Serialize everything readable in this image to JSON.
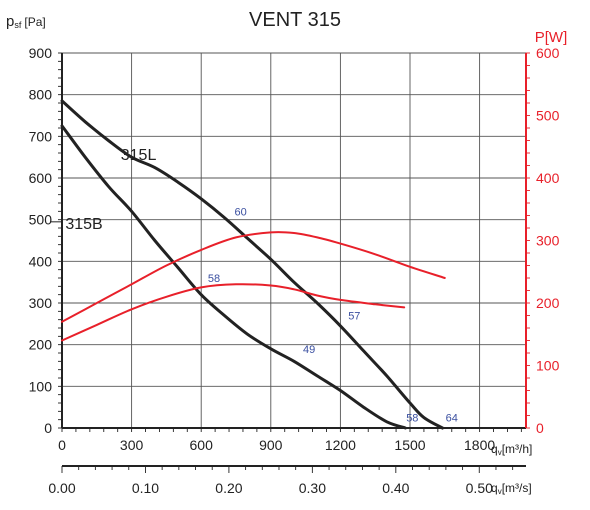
{
  "chart_data": {
    "type": "line",
    "title": "VENT 315",
    "ylabel": "psf [Pa]",
    "ylabel_sub": "sf",
    "ylabel_main": "p",
    "ylabel_unit": "[Pa]",
    "y2label": "P[W]",
    "xlabel": "qv[m³/h]",
    "xlabel_main": "q",
    "xlabel_sub": "v",
    "xlabel_unit": "[m³/h]",
    "x2label_main": "q",
    "x2label_sub": "v",
    "x2label_unit": "[m³/s]",
    "xlim": [
      0,
      2000
    ],
    "ylim": [
      0,
      900
    ],
    "y2lim": [
      0,
      600
    ],
    "x2lim": [
      0,
      0.556
    ],
    "grid": true,
    "x_ticks": [
      0,
      300,
      600,
      900,
      1200,
      1500,
      1800
    ],
    "x_tick_labels": [
      "0",
      "300",
      "600",
      "900",
      "1200",
      "1500",
      "1800"
    ],
    "y_ticks": [
      0,
      100,
      200,
      300,
      400,
      500,
      600,
      700,
      800,
      900
    ],
    "y_tick_labels": [
      "0",
      "100",
      "200",
      "300",
      "400",
      "500",
      "600",
      "700",
      "800",
      "900"
    ],
    "y2_ticks": [
      0,
      100,
      200,
      300,
      400,
      500,
      600
    ],
    "y2_tick_labels": [
      "0",
      "100",
      "200",
      "300",
      "400",
      "500",
      "600"
    ],
    "x2_ticks": [
      0,
      0.1,
      0.2,
      0.3,
      0.4,
      0.5
    ],
    "x2_tick_labels": [
      "0.00",
      "0.10",
      "0.20",
      "0.30",
      "0.40",
      "0.50"
    ],
    "colors": {
      "pressure": "#222222",
      "power": "#e8202a",
      "annotation": "#3a4fa0",
      "grid": "#555555"
    },
    "series": [
      {
        "name": "315L",
        "axis": "left",
        "x": [
          0,
          100,
          200,
          300,
          400,
          500,
          600,
          700,
          800,
          900,
          1000,
          1100,
          1200,
          1300,
          1400,
          1500,
          1560,
          1640
        ],
        "y": [
          785,
          735,
          690,
          650,
          625,
          590,
          550,
          505,
          455,
          405,
          350,
          300,
          245,
          185,
          125,
          60,
          25,
          0
        ]
      },
      {
        "name": "315B",
        "axis": "left",
        "x": [
          0,
          100,
          200,
          300,
          400,
          500,
          600,
          700,
          800,
          900,
          1000,
          1100,
          1200,
          1300,
          1400,
          1480
        ],
        "y": [
          725,
          650,
          580,
          520,
          450,
          385,
          320,
          270,
          225,
          190,
          160,
          125,
          90,
          50,
          15,
          0
        ]
      },
      {
        "name": "",
        "axis": "right",
        "x": [
          0,
          150,
          300,
          450,
          600,
          750,
          900,
          1000,
          1100,
          1200,
          1350,
          1500,
          1650
        ],
        "y": [
          170,
          200,
          230,
          260,
          285,
          305,
          313,
          312,
          305,
          295,
          278,
          258,
          240
        ]
      },
      {
        "name": "",
        "axis": "right",
        "x": [
          0,
          150,
          300,
          450,
          600,
          750,
          900,
          1000,
          1100,
          1200,
          1350,
          1475
        ],
        "y": [
          140,
          165,
          190,
          210,
          225,
          230,
          228,
          222,
          212,
          205,
          198,
          193
        ]
      }
    ],
    "series_labels": [
      {
        "text": "315L",
        "x": 330,
        "y": 655
      },
      {
        "text": "315B",
        "x": 95,
        "y": 490
      }
    ],
    "annotations": [
      {
        "text": "60",
        "x": 770,
        "y": 520
      },
      {
        "text": "58",
        "x": 655,
        "y": 360
      },
      {
        "text": "57",
        "x": 1260,
        "y": 270
      },
      {
        "text": "49",
        "x": 1065,
        "y": 190
      },
      {
        "text": "58",
        "x": 1510,
        "y": 25
      },
      {
        "text": "64",
        "x": 1680,
        "y": 25
      }
    ]
  }
}
